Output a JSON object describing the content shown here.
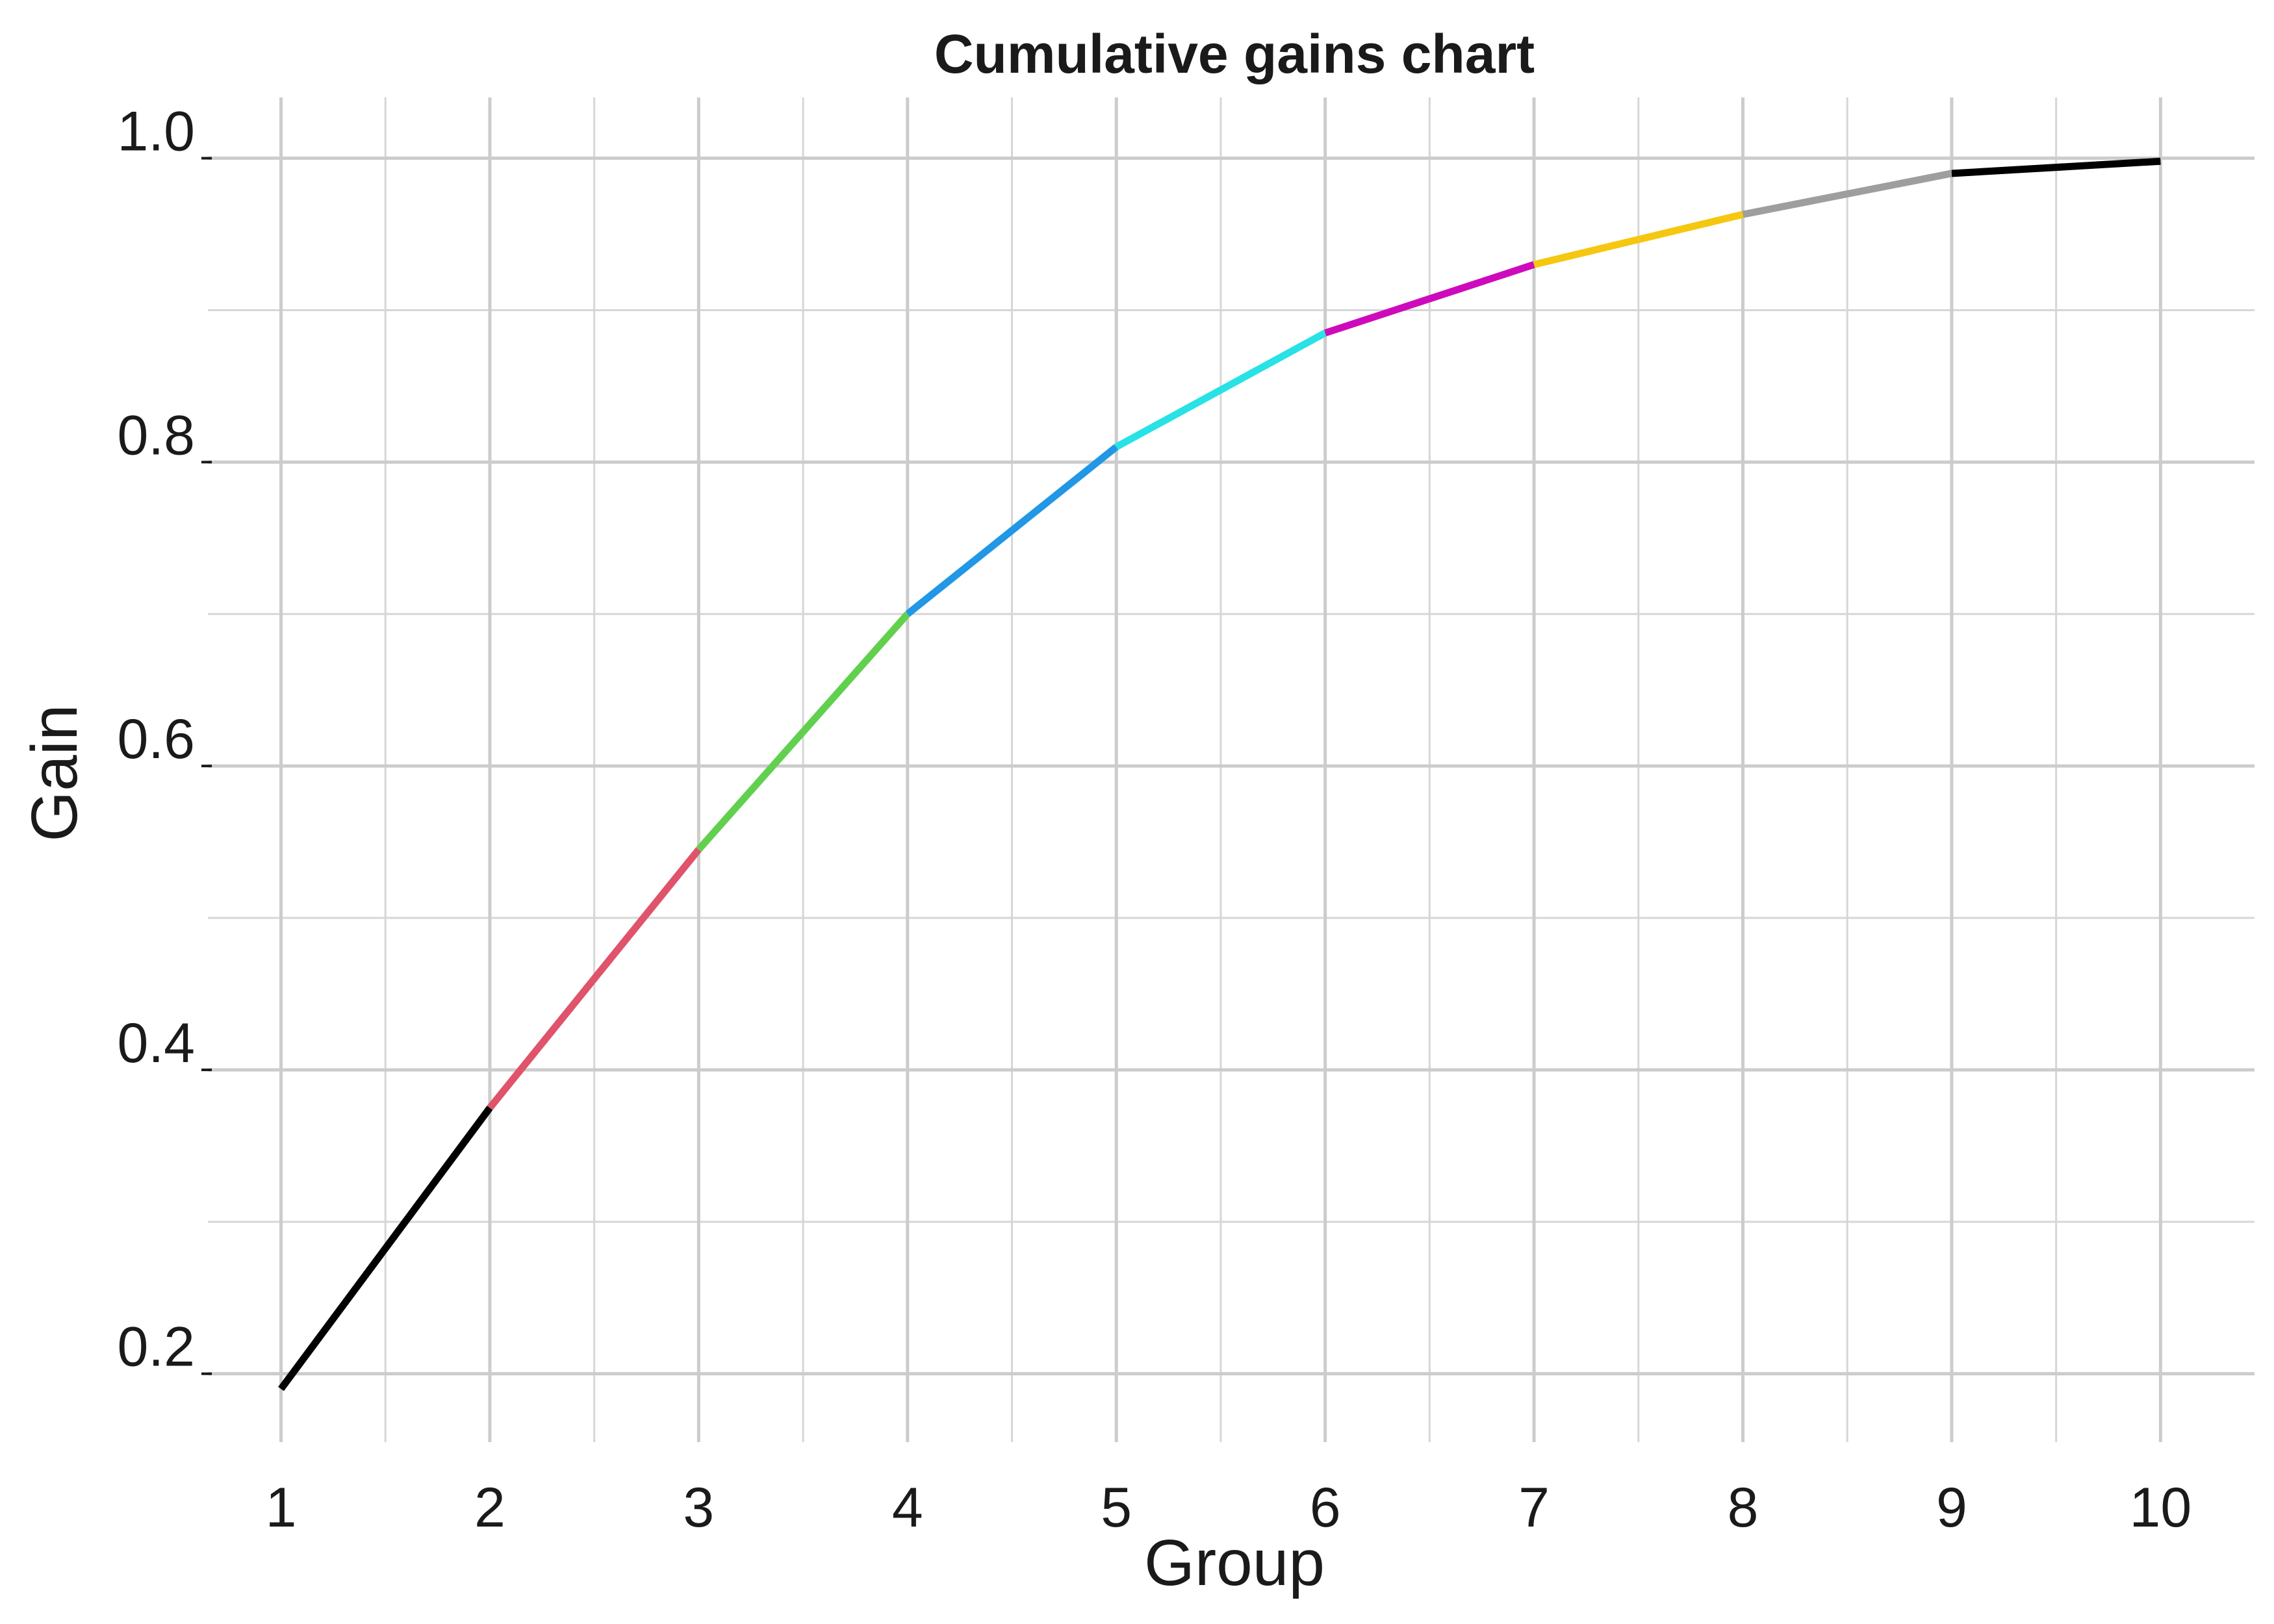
{
  "chart_data": {
    "type": "line",
    "title": "Cumulative gains chart",
    "xlabel": "Group",
    "ylabel": "Gain",
    "x": [
      1,
      2,
      3,
      4,
      5,
      6,
      7,
      8,
      9,
      10
    ],
    "y": [
      0.19,
      0.375,
      0.545,
      0.7,
      0.81,
      0.885,
      0.93,
      0.963,
      0.99,
      0.998
    ],
    "segment_colors": [
      "#000000",
      "#DF536B",
      "#61D04F",
      "#2297E6",
      "#28E2E5",
      "#CD0BBC",
      "#F5C710",
      "#9E9E9E",
      "#000000"
    ],
    "xlim": [
      0.65,
      10.45
    ],
    "ylim": [
      0.155,
      1.04
    ],
    "x_ticks": [
      1,
      2,
      3,
      4,
      5,
      6,
      7,
      8,
      9,
      10
    ],
    "x_tick_labels": [
      "1",
      "2",
      "3",
      "4",
      "5",
      "6",
      "7",
      "8",
      "9",
      "10"
    ],
    "y_ticks": [
      0.2,
      0.4,
      0.6,
      0.8,
      1.0
    ],
    "y_tick_labels": [
      "0.2",
      "0.4",
      "0.6",
      "0.8",
      "1.0"
    ],
    "grid": true,
    "minor_grid": true,
    "legend": false,
    "grid_color": "#cccccc"
  }
}
